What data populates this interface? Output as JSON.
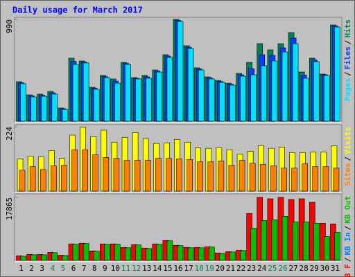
{
  "chart_data": [
    {
      "type": "bar",
      "title": "Daily usage for March 2017",
      "legend_separator": "/",
      "legend_reverse": true,
      "ylim": [
        0,
        990
      ],
      "yticks": [
        990
      ],
      "series": [
        {
          "name": "Hits",
          "color": "#00805c",
          "values": [
            384,
            256,
            263,
            290,
            128,
            613,
            586,
            330,
            445,
            411,
            572,
            424,
            445,
            498,
            647,
            990,
            734,
            519,
            431,
            397,
            370,
            465,
            572,
            754,
            694,
            754,
            862,
            478,
            613,
            458,
            936
          ]
        },
        {
          "name": "Files",
          "color": "#0040ff",
          "values": [
            374,
            246,
            252,
            276,
            121,
            582,
            576,
            320,
            434,
            390,
            562,
            417,
            431,
            488,
            633,
            980,
            720,
            508,
            421,
            387,
            360,
            451,
            511,
            646,
            640,
            713,
            808,
            448,
            596,
            451,
            926
          ]
        },
        {
          "name": "Pages",
          "color": "#00e0ff",
          "values": [
            364,
            236,
            242,
            263,
            114,
            552,
            566,
            310,
            424,
            370,
            552,
            411,
            418,
            478,
            620,
            970,
            707,
            498,
            411,
            377,
            350,
            438,
            451,
            539,
            586,
            673,
            754,
            418,
            579,
            445,
            916
          ]
        }
      ]
    },
    {
      "type": "bar",
      "legend_separator": "/",
      "legend_reverse": true,
      "ylim": [
        0,
        224
      ],
      "yticks": [
        224
      ],
      "series": [
        {
          "name": "Visits",
          "color": "#ffff00",
          "values": [
            112,
            122,
            119,
            141,
            114,
            195,
            222,
            190,
            212,
            170,
            187,
            204,
            183,
            166,
            168,
            180,
            170,
            151,
            149,
            151,
            144,
            129,
            139,
            158,
            149,
            153,
            134,
            134,
            136,
            136,
            158
          ]
        },
        {
          "name": "Sites",
          "color": "#ff8000",
          "values": [
            73,
            85,
            75,
            88,
            90,
            144,
            144,
            127,
            117,
            114,
            107,
            107,
            107,
            114,
            114,
            112,
            110,
            102,
            102,
            105,
            90,
            107,
            97,
            93,
            88,
            80,
            80,
            95,
            85,
            85,
            80
          ]
        }
      ]
    },
    {
      "type": "bar",
      "legend_separator": "/",
      "legend_reverse": false,
      "ylim": [
        0,
        17865
      ],
      "yticks": [
        17865
      ],
      "categories": [
        "1",
        "2",
        "3",
        "4",
        "5",
        "6",
        "7",
        "8",
        "9",
        "10",
        "11",
        "12",
        "13",
        "14",
        "15",
        "16",
        "17",
        "18",
        "19",
        "20",
        "21",
        "22",
        "23",
        "24",
        "25",
        "26",
        "27",
        "28",
        "29",
        "30",
        "31"
      ],
      "highlighted_categories": [
        "4",
        "5",
        "11",
        "12",
        "18",
        "19",
        "25",
        "26"
      ],
      "highlight_color": "#00805c",
      "series": [
        {
          "name": "KB F",
          "color": "#ff0000",
          "values": [
            1290,
            1690,
            1680,
            2290,
            1480,
            4680,
            4860,
            2690,
            4670,
            4680,
            3680,
            4470,
            3480,
            4670,
            5660,
            4270,
            3680,
            3680,
            3880,
            2090,
            2480,
            2880,
            13300,
            17865,
            17468,
            17865,
            17270,
            17468,
            16475,
            10520,
            10321
          ]
        },
        {
          "name": "KB In",
          "color": "#0080ff",
          "values": [
            0,
            0,
            0,
            0,
            0,
            0,
            0,
            0,
            0,
            0,
            0,
            0,
            0,
            0,
            0,
            0,
            0,
            0,
            0,
            0,
            0,
            0,
            0,
            0,
            0,
            0,
            0,
            0,
            0,
            0,
            0
          ]
        },
        {
          "name": "KB Out",
          "color": "#00c000",
          "values": [
            1191,
            1588,
            1588,
            2183,
            1390,
            4565,
            4764,
            2580,
            4565,
            4565,
            3573,
            4367,
            3374,
            4565,
            5558,
            4168,
            3573,
            3573,
            3771,
            1985,
            2382,
            2779,
            9131,
            11315,
            11514,
            12506,
            10918,
            10918,
            10520,
            6749,
            7940
          ]
        }
      ]
    }
  ]
}
